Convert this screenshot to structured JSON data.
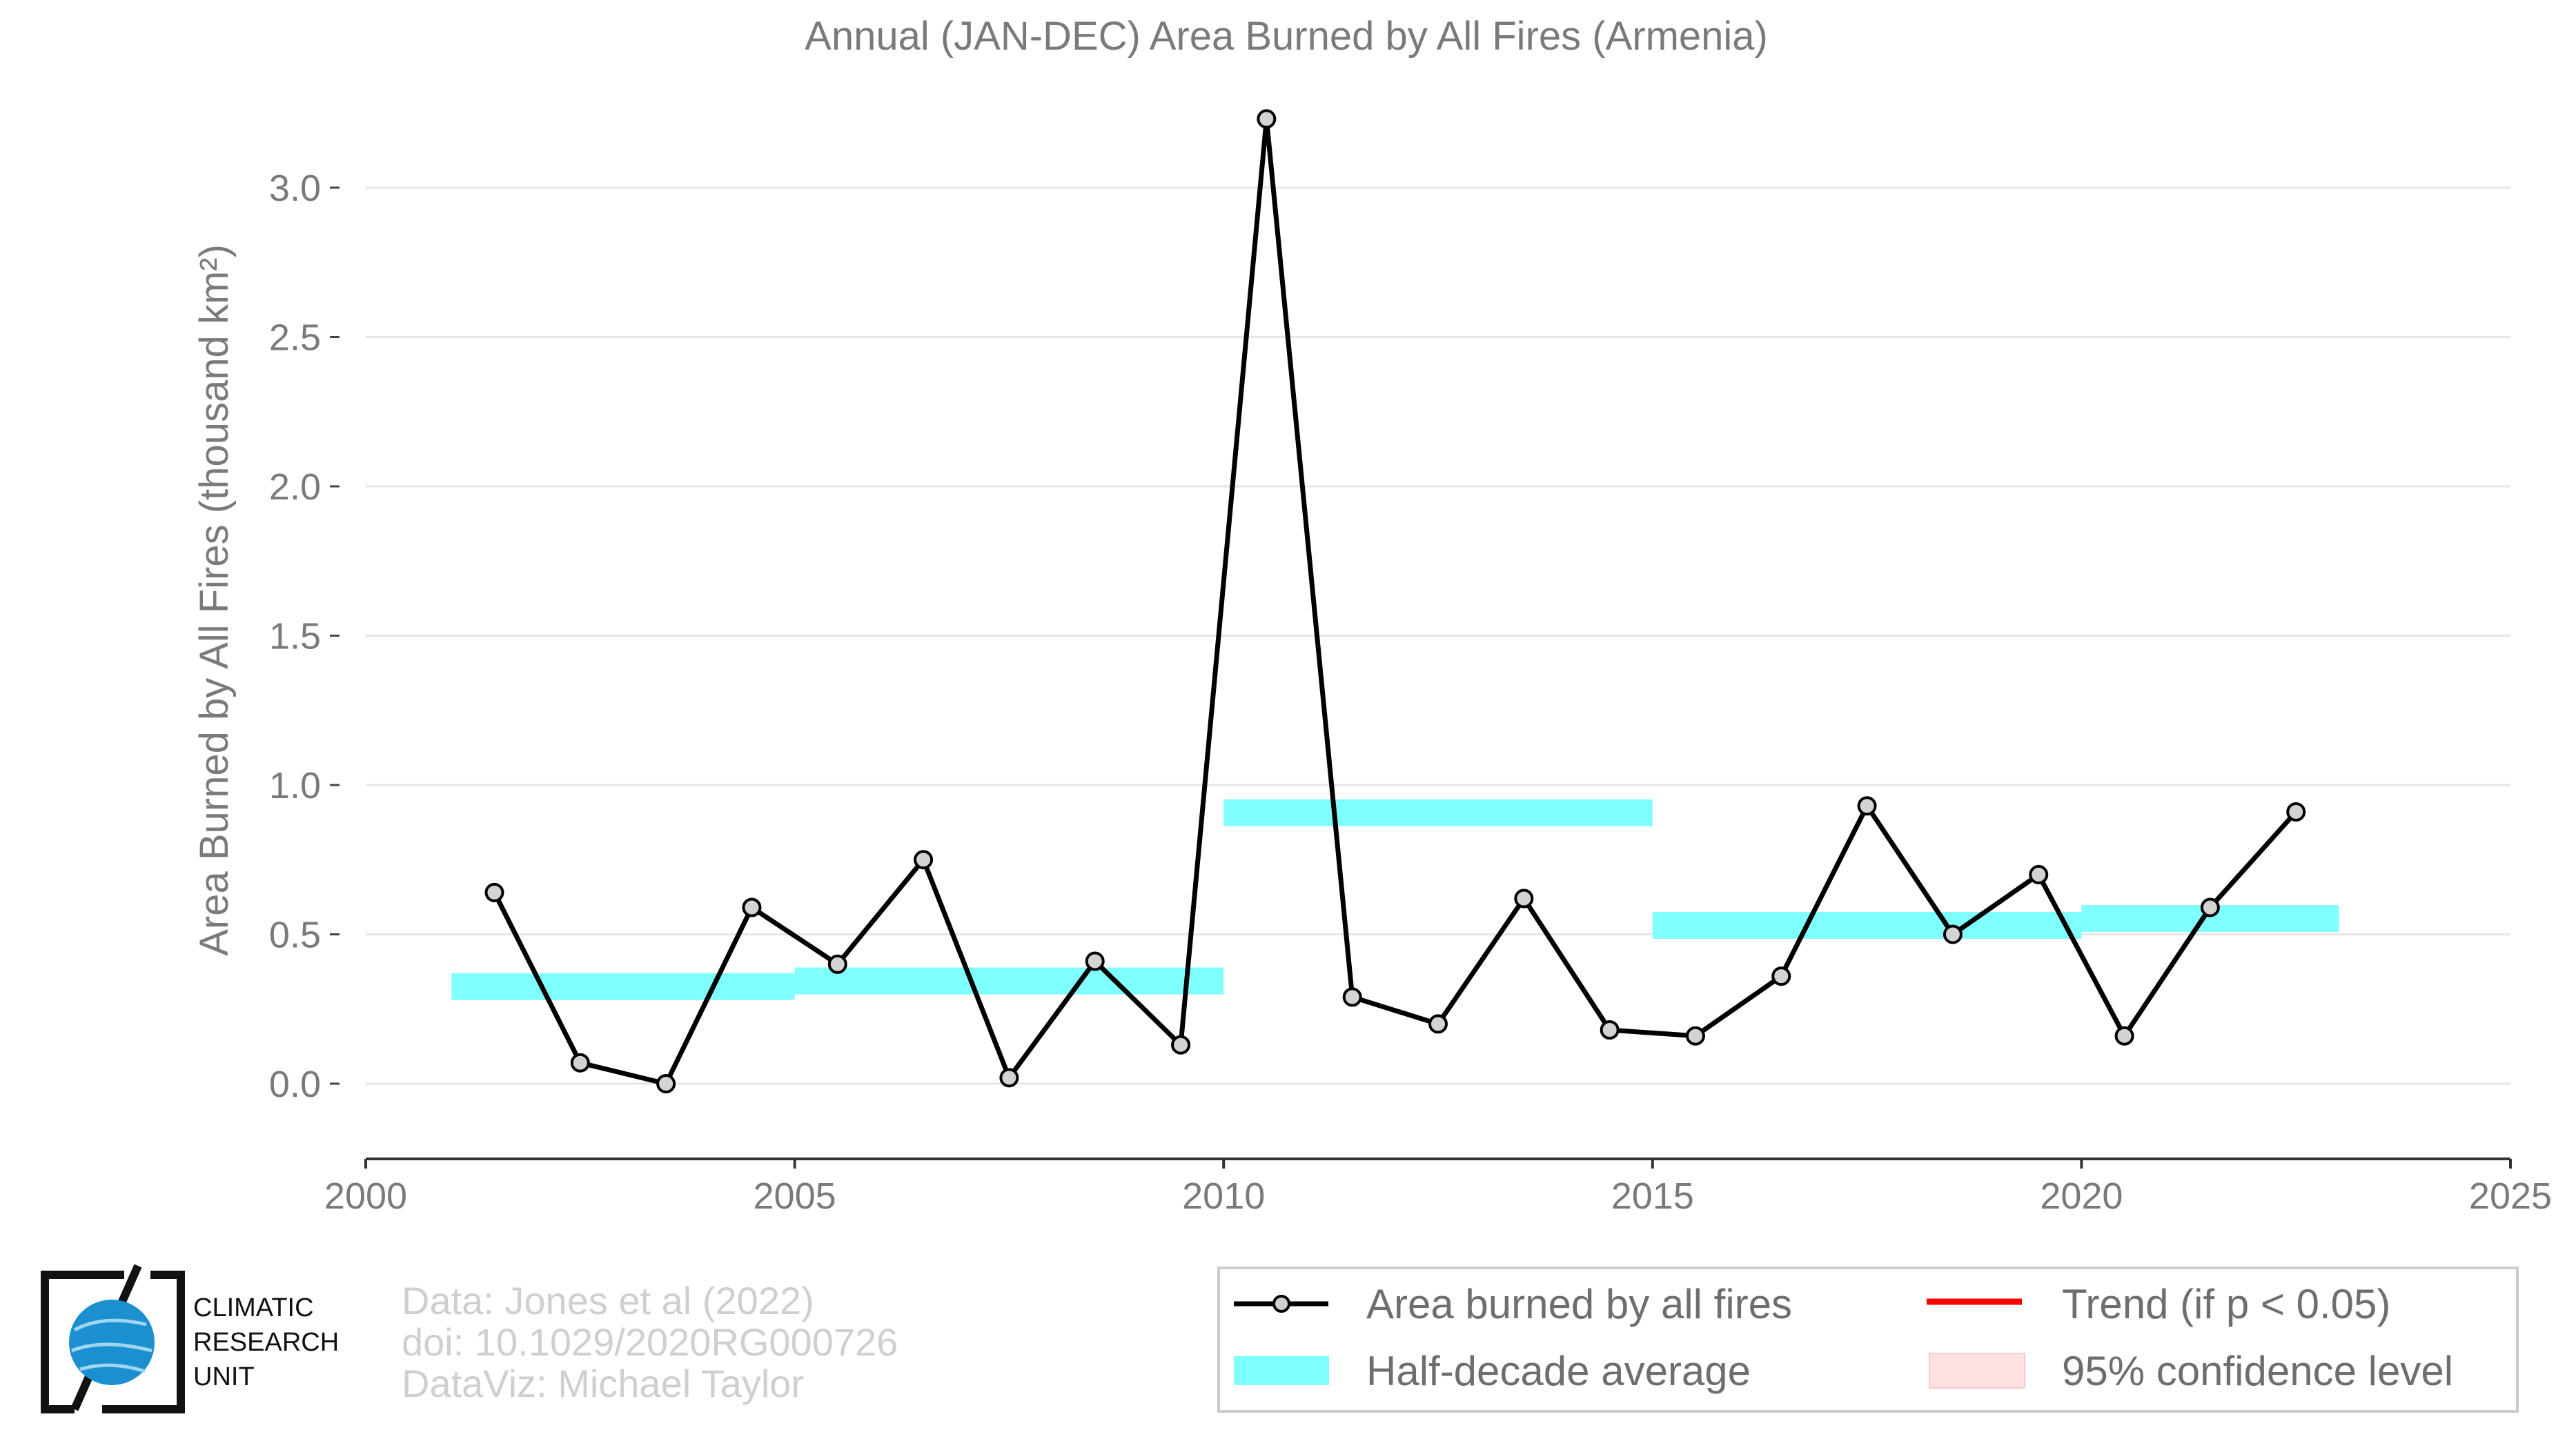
{
  "chart_data": {
    "type": "line",
    "title": "Annual (JAN-DEC) Area Burned by All Fires (Armenia)",
    "ylabel": "Area Burned by All Fires (thousand km²)",
    "xlabel": "",
    "xlim": [
      2000,
      2025
    ],
    "ylim": [
      -0.25,
      3.3
    ],
    "xticks": [
      "2000",
      "2005",
      "2010",
      "2015",
      "2020",
      "2025"
    ],
    "yticks": [
      "0.0",
      "0.5",
      "1.0",
      "1.5",
      "2.0",
      "2.5",
      "3.0"
    ],
    "grid": "horizontal",
    "legend_position": "bottom-right",
    "series": [
      {
        "name": "Area burned by all fires",
        "color": "#000000",
        "x": [
          2001.5,
          2002.5,
          2003.5,
          2004.5,
          2005.5,
          2006.5,
          2007.5,
          2008.5,
          2009.5,
          2010.5,
          2011.5,
          2012.5,
          2013.5,
          2014.5,
          2015.5,
          2016.5,
          2017.5,
          2018.5,
          2019.5,
          2020.5,
          2021.5,
          2022.5
        ],
        "values": [
          0.64,
          0.07,
          0.0,
          0.59,
          0.4,
          0.75,
          0.02,
          0.41,
          0.13,
          3.23,
          0.29,
          0.2,
          0.62,
          0.18,
          0.16,
          0.36,
          0.93,
          0.5,
          0.7,
          0.16,
          0.59,
          0.91
        ]
      }
    ],
    "half_decade_average": {
      "name": "Half-decade average",
      "color": "#7fffff",
      "segments": [
        {
          "x_start": 2001,
          "x_end": 2005,
          "value": 0.325
        },
        {
          "x_start": 2005,
          "x_end": 2010,
          "value": 0.344
        },
        {
          "x_start": 2010,
          "x_end": 2015,
          "value": 0.907
        },
        {
          "x_start": 2015,
          "x_end": 2020,
          "value": 0.53
        },
        {
          "x_start": 2020,
          "x_end": 2023,
          "value": 0.553
        }
      ]
    },
    "legend": [
      {
        "label": "Area burned by all fires",
        "kind": "line-marker",
        "color": "#000000"
      },
      {
        "label": "Trend (if p < 0.05)",
        "kind": "line",
        "color": "#ff0000"
      },
      {
        "label": "Half-decade average",
        "kind": "band",
        "color": "#7fffff"
      },
      {
        "label": "95% confidence level",
        "kind": "box",
        "color": "#ffe0e0"
      }
    ]
  },
  "credits": {
    "line1": "Data: Jones et al (2022)",
    "line2": "doi: 10.1029/2020RG000726",
    "line3": "DataViz: Michael Taylor"
  },
  "logo": {
    "line1": "CLIMATIC",
    "line2": "RESEARCH",
    "line3": "UNIT"
  }
}
